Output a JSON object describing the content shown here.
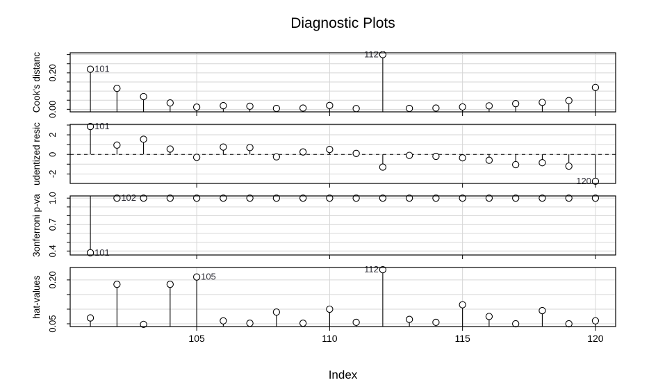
{
  "chart_data": {
    "type": "scatter",
    "title": "Diagnostic Plots",
    "xlabel": "Index",
    "x": [
      101,
      102,
      103,
      104,
      105,
      106,
      107,
      108,
      109,
      110,
      111,
      112,
      113,
      114,
      115,
      116,
      117,
      118,
      119,
      120
    ],
    "xlim": [
      100.24,
      120.76
    ],
    "x_ticks": [
      105,
      110,
      115,
      120
    ],
    "x_tick_labels": [
      "105",
      "110",
      "115",
      "120"
    ],
    "grid_on": true,
    "legend": "none",
    "colors": {
      "stroke": "#000000",
      "grid": "#d6d6d6",
      "point_label": "#2f2f38",
      "background": "#ffffff"
    },
    "panels": [
      {
        "name": "cooks-distance",
        "ylab_display": "Cook's distanc",
        "values": [
          0.22,
          0.115,
          0.07,
          0.035,
          0.012,
          0.02,
          0.017,
          0.005,
          0.007,
          0.021,
          0.004,
          0.3,
          0.005,
          0.007,
          0.013,
          0.019,
          0.031,
          0.038,
          0.048,
          0.12
        ],
        "ylim": [
          -0.014,
          0.31
        ],
        "grid": {
          "from": 0.0,
          "to": 0.3,
          "step": 0.05
        },
        "yticks": [
          {
            "value": 0.0,
            "label": "0.00"
          },
          {
            "value": 0.2,
            "label": "0.20"
          }
        ],
        "stem_base": "bottom",
        "zero_line": false,
        "point_labels": [
          {
            "x": 101,
            "label": "101",
            "side": "right"
          },
          {
            "x": 112,
            "label": "112",
            "side": "left"
          }
        ]
      },
      {
        "name": "studentized-residuals",
        "ylab_display": "udentized resic",
        "values": [
          2.85,
          0.95,
          1.55,
          0.55,
          -0.3,
          0.75,
          0.7,
          -0.25,
          0.25,
          0.5,
          0.1,
          -1.3,
          -0.1,
          -0.2,
          -0.35,
          -0.6,
          -1.05,
          -0.85,
          -1.2,
          -2.75
        ],
        "ylim": [
          -2.97,
          3.07
        ],
        "grid": {
          "from": -2,
          "to": 3,
          "step": 1
        },
        "yticks": [
          {
            "value": -2,
            "label": "-2"
          },
          {
            "value": 0,
            "label": "0"
          },
          {
            "value": 2,
            "label": "2"
          }
        ],
        "stem_base": 0,
        "zero_line": true,
        "point_labels": [
          {
            "x": 101,
            "label": "101",
            "side": "right"
          },
          {
            "x": 120,
            "label": "120",
            "side": "left"
          }
        ]
      },
      {
        "name": "bonferroni-p-value",
        "ylab_display": "3onferroni p-va",
        "values": [
          0.38,
          1,
          1,
          1,
          1,
          1,
          1,
          1,
          1,
          1,
          1,
          1,
          1,
          1,
          1,
          1,
          1,
          1,
          1,
          1
        ],
        "ylim": [
          0.355,
          1.025
        ],
        "grid": {
          "from": 0.4,
          "to": 1.0,
          "step": 0.1
        },
        "yticks": [
          {
            "value": 0.4,
            "label": "0.4"
          },
          {
            "value": 0.7,
            "label": "0.7"
          },
          {
            "value": 1.0,
            "label": "1.0"
          }
        ],
        "stem_base": "top",
        "zero_line": false,
        "point_labels": [
          {
            "x": 101,
            "label": "101",
            "side": "right"
          },
          {
            "x": 102,
            "label": "102",
            "side": "right"
          }
        ]
      },
      {
        "name": "hat-values",
        "ylab_display": "hat-values",
        "values": [
          0.07,
          0.185,
          0.048,
          0.185,
          0.21,
          0.06,
          0.052,
          0.09,
          0.052,
          0.1,
          0.055,
          0.235,
          0.065,
          0.055,
          0.115,
          0.075,
          0.05,
          0.095,
          0.05,
          0.06
        ],
        "ylim": [
          0.0405,
          0.2425
        ],
        "grid": {
          "from": 0.05,
          "to": 0.2,
          "step": 0.05
        },
        "yticks": [
          {
            "value": 0.05,
            "label": "0.05"
          },
          {
            "value": 0.2,
            "label": "0.20"
          }
        ],
        "stem_base": "bottom",
        "zero_line": false,
        "point_labels": [
          {
            "x": 105,
            "label": "105",
            "side": "right"
          },
          {
            "x": 112,
            "label": "112",
            "side": "left"
          }
        ]
      }
    ]
  }
}
